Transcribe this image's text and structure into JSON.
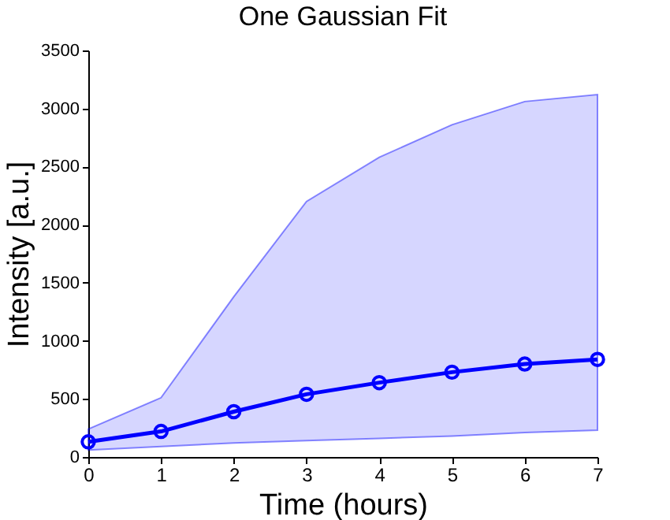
{
  "chart_data": {
    "type": "line",
    "title": "One Gaussian Fit",
    "xlabel": "Time (hours)",
    "ylabel": "Intensity [a.u.]",
    "x": [
      0,
      1,
      2,
      3,
      4,
      5,
      6,
      7
    ],
    "series": [
      {
        "color": "#0000ff",
        "values": [
          130,
          220,
          390,
          540,
          640,
          730,
          800,
          840
        ],
        "lower": [
          60,
          90,
          120,
          140,
          160,
          180,
          210,
          230
        ],
        "upper": [
          240,
          510,
          1380,
          2200,
          2580,
          2860,
          3060,
          3120
        ]
      }
    ],
    "xlim": [
      0,
      7
    ],
    "xticks": [
      0,
      1,
      2,
      3,
      4,
      5,
      6,
      7
    ],
    "ylim": [
      0,
      3500
    ],
    "yticks": [
      0,
      500,
      1000,
      1500,
      2000,
      2500,
      3000,
      3500
    ],
    "grid": false,
    "marker": "circle",
    "line_style": "solid"
  }
}
